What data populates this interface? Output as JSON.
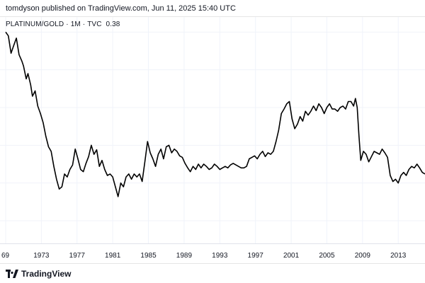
{
  "header": {
    "published_text": "tomdyson published on TradingView.com, Jun 11, 2025 15:40 UTC"
  },
  "legend": {
    "symbol": "PLATINUM/GOLD",
    "interval": "1M",
    "source": "TVC",
    "last_value": "0.38"
  },
  "footer": {
    "brand": "TradingView"
  },
  "colors": {
    "line": "#000000",
    "grid": "#f0f3fa",
    "text": "#131722"
  },
  "chart_data": {
    "type": "line",
    "title": "",
    "xlabel": "",
    "ylabel": "",
    "grid": true,
    "xlim": [
      1969.0,
      2016.0
    ],
    "ylim": [
      0.2,
      3.2
    ],
    "x_ticks": [
      "69",
      "1973",
      "1977",
      "1981",
      "1985",
      "1989",
      "1993",
      "1997",
      "2001",
      "2005",
      "2009",
      "2013"
    ],
    "x_tick_values": [
      1969,
      1973,
      1977,
      1981,
      1985,
      1989,
      1993,
      1997,
      2001,
      2005,
      2009,
      2013
    ],
    "series": [
      {
        "x": [
          1969.0,
          1969.3,
          1969.6,
          1969.9,
          1970.2,
          1970.5,
          1970.8,
          1971.0,
          1971.3,
          1971.5,
          1971.8,
          1972.0,
          1972.3,
          1972.6,
          1972.9,
          1973.2,
          1973.5,
          1973.8,
          1974.1,
          1974.4,
          1974.7,
          1975.0,
          1975.3,
          1975.6,
          1975.9,
          1976.2,
          1976.5,
          1976.8,
          1977.1,
          1977.4,
          1977.7,
          1978.0,
          1978.3,
          1978.6,
          1978.9,
          1979.2,
          1979.5,
          1979.8,
          1980.1,
          1980.4,
          1980.7,
          1981.0,
          1981.3,
          1981.6,
          1981.9,
          1982.2,
          1982.5,
          1982.8,
          1983.1,
          1983.4,
          1983.7,
          1984.0,
          1984.3,
          1984.6,
          1984.9,
          1985.2,
          1985.5,
          1985.8,
          1986.1,
          1986.4,
          1986.7,
          1987.0,
          1987.3,
          1987.6,
          1987.9,
          1988.2,
          1988.5,
          1988.8,
          1989.1,
          1989.4,
          1989.7,
          1990.0,
          1990.3,
          1990.6,
          1990.9,
          1991.2,
          1991.5,
          1991.8,
          1992.1,
          1992.4,
          1992.7,
          1993.0,
          1993.3,
          1993.6,
          1993.9,
          1994.2,
          1994.5,
          1994.8,
          1995.1,
          1995.4,
          1995.7,
          1996.0,
          1996.3,
          1996.6,
          1996.9,
          1997.2,
          1997.5,
          1997.8,
          1998.1,
          1998.4,
          1998.7,
          1999.0,
          1999.3,
          1999.6,
          1999.9,
          2000.2,
          2000.5,
          2000.8,
          2001.1,
          2001.4,
          2001.7,
          2002.0,
          2002.3,
          2002.6,
          2002.9,
          2003.2,
          2003.5,
          2003.8,
          2004.1,
          2004.4,
          2004.7,
          2005.0,
          2005.3,
          2005.6,
          2005.9,
          2006.2,
          2006.5,
          2006.8,
          2007.1,
          2007.4,
          2007.7,
          2008.0,
          2008.2,
          2008.4,
          2008.6,
          2008.8,
          2009.1,
          2009.4,
          2009.7,
          2010.0,
          2010.3,
          2010.6,
          2010.9,
          2011.2,
          2011.5,
          2011.8,
          2012.1,
          2012.4,
          2012.7,
          2013.0,
          2013.3,
          2013.6,
          2013.9,
          2014.2,
          2014.5,
          2014.8,
          2015.1,
          2015.4,
          2015.7,
          2016.0
        ],
        "y": [
          3.0,
          2.95,
          2.72,
          2.82,
          2.92,
          2.7,
          2.62,
          2.55,
          2.38,
          2.45,
          2.3,
          2.15,
          2.22,
          2.02,
          1.92,
          1.8,
          1.62,
          1.48,
          1.42,
          1.22,
          1.05,
          0.92,
          0.95,
          1.12,
          1.08,
          1.18,
          1.24,
          1.45,
          1.32,
          1.18,
          1.15,
          1.26,
          1.35,
          1.5,
          1.38,
          1.44,
          1.22,
          1.3,
          1.18,
          1.1,
          1.12,
          1.08,
          0.95,
          0.82,
          1.0,
          0.95,
          1.08,
          1.12,
          1.05,
          1.12,
          1.08,
          1.12,
          1.02,
          1.28,
          1.55,
          1.4,
          1.32,
          1.22,
          1.38,
          1.45,
          1.32,
          1.48,
          1.5,
          1.4,
          1.45,
          1.42,
          1.36,
          1.34,
          1.26,
          1.2,
          1.15,
          1.22,
          1.18,
          1.25,
          1.2,
          1.25,
          1.22,
          1.18,
          1.2,
          1.25,
          1.22,
          1.18,
          1.2,
          1.22,
          1.2,
          1.24,
          1.26,
          1.24,
          1.22,
          1.2,
          1.2,
          1.22,
          1.32,
          1.34,
          1.36,
          1.32,
          1.38,
          1.42,
          1.35,
          1.4,
          1.38,
          1.42,
          1.55,
          1.7,
          1.92,
          1.98,
          2.05,
          2.08,
          1.85,
          1.72,
          1.78,
          1.88,
          1.82,
          1.95,
          1.9,
          1.95,
          2.02,
          1.96,
          2.05,
          2.0,
          1.92,
          2.0,
          2.05,
          1.98,
          1.98,
          1.95,
          2.0,
          2.02,
          1.98,
          2.08,
          2.08,
          2.02,
          2.12,
          2.0,
          1.62,
          1.3,
          1.42,
          1.38,
          1.28,
          1.35,
          1.42,
          1.4,
          1.38,
          1.45,
          1.4,
          1.34,
          1.1,
          1.02,
          1.05,
          1.0,
          1.1,
          1.14,
          1.1,
          1.18,
          1.22,
          1.2,
          1.25,
          1.2,
          1.14,
          1.12
        ]
      }
    ]
  }
}
